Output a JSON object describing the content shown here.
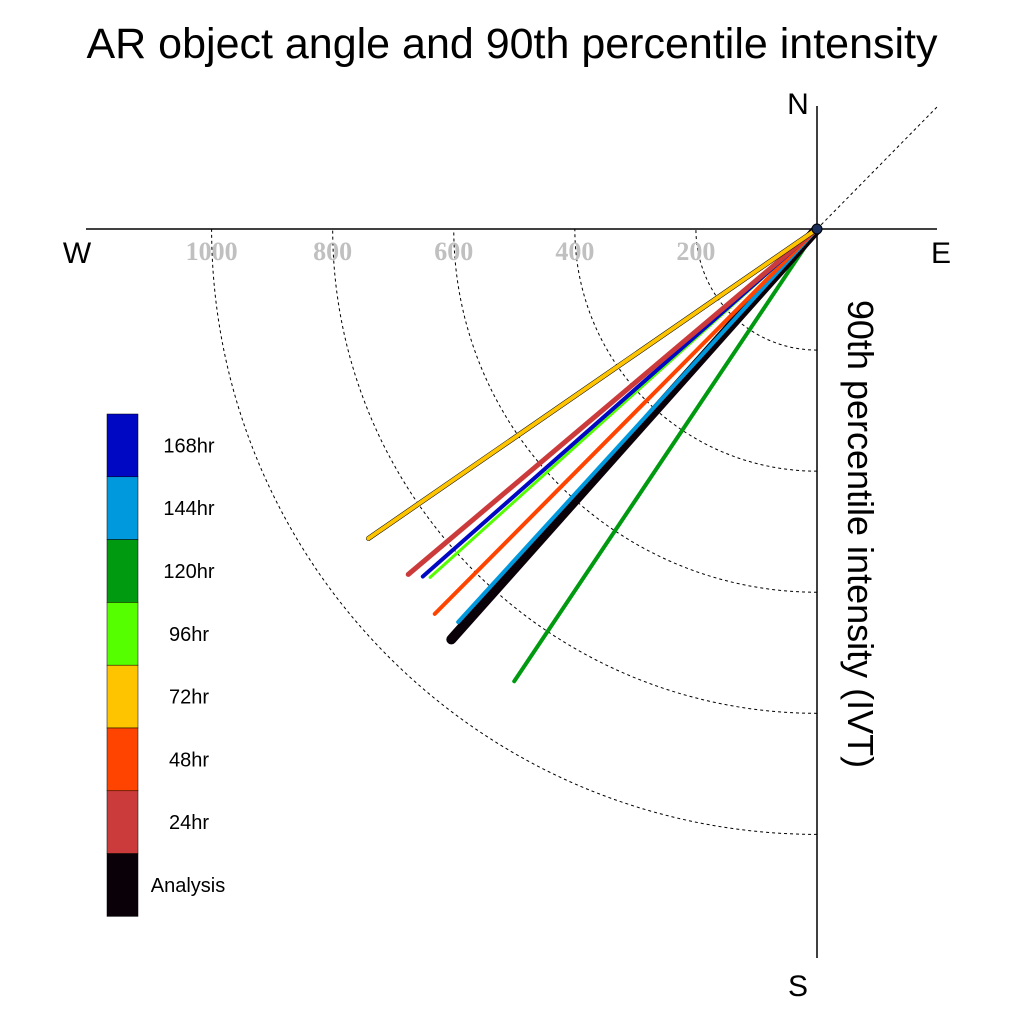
{
  "chart_data": {
    "type": "polar-vector",
    "title": "AR object angle and 90th percentile intensity",
    "radial_label": "90th percentile intensity (IVT)",
    "compass": {
      "north": "N",
      "south": "S",
      "east": "E",
      "west": "W"
    },
    "rings": [
      200,
      400,
      600,
      800,
      1000
    ],
    "ring_labels": [
      "200",
      "400",
      "600",
      "800",
      "1000"
    ],
    "grid": true,
    "legend_position": "left",
    "series": [
      {
        "name": "Analysis",
        "color": "#0a0008",
        "angle_deg": 221.7,
        "intensity": 908
      },
      {
        "name": "24hr",
        "color": "#cc3b3b",
        "angle_deg": 229.8,
        "intensity": 884
      },
      {
        "name": "48hr",
        "color": "#ff4400",
        "angle_deg": 224.8,
        "intensity": 896
      },
      {
        "name": "72hr",
        "color": "#ffc400",
        "angle_deg": 235.4,
        "intensity": 900
      },
      {
        "name": "96hr",
        "color": "#55ff00",
        "angle_deg": 228.0,
        "intensity": 860
      },
      {
        "name": "120hr",
        "color": "#009a10",
        "angle_deg": 213.8,
        "intensity": 899
      },
      {
        "name": "144hr",
        "color": "#0099dd",
        "angle_deg": 222.4,
        "intensity": 879
      },
      {
        "name": "168hr",
        "color": "#0008c4",
        "angle_deg": 228.6,
        "intensity": 868
      }
    ],
    "legend_order": [
      "168hr",
      "144hr",
      "120hr",
      "96hr",
      "72hr",
      "48hr",
      "24hr",
      "Analysis"
    ]
  }
}
